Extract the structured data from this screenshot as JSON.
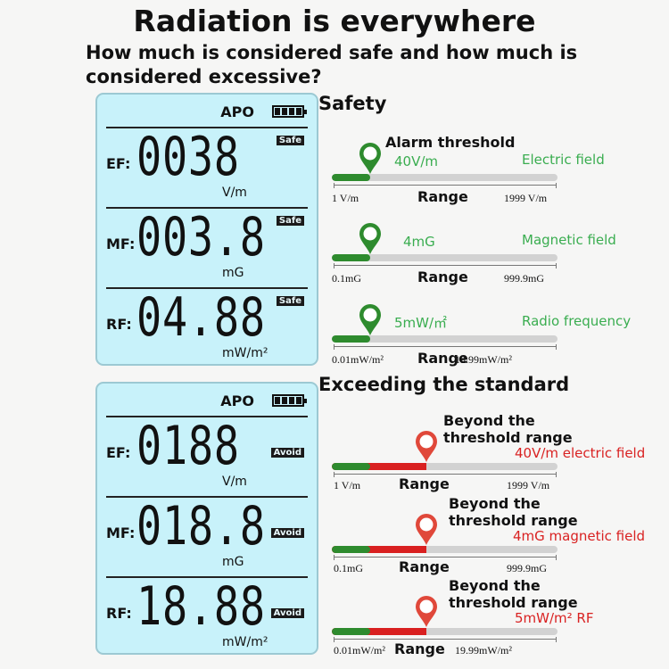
{
  "title": "Radiation is everywhere",
  "subtitle": "How much is considered safe and how much is considered excessive?",
  "colors": {
    "lcd": "#c8f2fa",
    "safe": "#2e8b2e",
    "exceed": "#d92020",
    "label_green": "#3aad50"
  },
  "panels": [
    {
      "apo": "APO",
      "rows": [
        {
          "label": "EF:",
          "value": "0038",
          "badge": "Safe",
          "unit": "V/m"
        },
        {
          "label": "MF:",
          "value": "003.8",
          "badge": "Safe",
          "unit": "mG"
        },
        {
          "label": "RF:",
          "value": "04.88",
          "badge": "Safe",
          "unit": "mW/m²"
        }
      ]
    },
    {
      "apo": "APO",
      "rows": [
        {
          "label": "EF:",
          "value": "0188",
          "badge": "Avoid",
          "unit": "V/m"
        },
        {
          "label": "MF:",
          "value": "018.8",
          "badge": "Avoid",
          "unit": "mG"
        },
        {
          "label": "RF:",
          "value": "18.88",
          "badge": "Avoid",
          "unit": "mW/m²"
        }
      ]
    }
  ],
  "safety": {
    "heading": "Safety",
    "alarm": "Alarm threshold",
    "range_label": "Range",
    "items": [
      {
        "threshold": "40V/m",
        "type": "Electric field",
        "min": "1 V/m",
        "max": "1999 V/m",
        "fill": 0.17
      },
      {
        "threshold": "4mG",
        "type": "Magnetic field",
        "min": "0.1mG",
        "max": "999.9mG",
        "fill": 0.17
      },
      {
        "threshold": "5mW/㎡",
        "type": "Radio frequency",
        "min": "0.01mW/m²",
        "max": "19.99mW/m²",
        "fill": 0.17
      }
    ]
  },
  "exceed": {
    "heading": "Exceeding the standard",
    "range_label": "Range",
    "items": [
      {
        "l1": "Beyond the",
        "l2": "threshold range",
        "desc": "40V/m electric field",
        "min": "1 V/m",
        "max": "1999 V/m",
        "safe_fill": 0.17,
        "fill": 0.42
      },
      {
        "l1": "Beyond the",
        "l2": "threshold range",
        "desc": "4mG magnetic field",
        "min": "0.1mG",
        "max": "999.9mG",
        "safe_fill": 0.17,
        "fill": 0.42
      },
      {
        "l1": "Beyond the",
        "l2": "threshold range",
        "desc": "5mW/m² RF",
        "min": "0.01mW/m²",
        "max": "19.99mW/m²",
        "safe_fill": 0.17,
        "fill": 0.42
      }
    ]
  }
}
